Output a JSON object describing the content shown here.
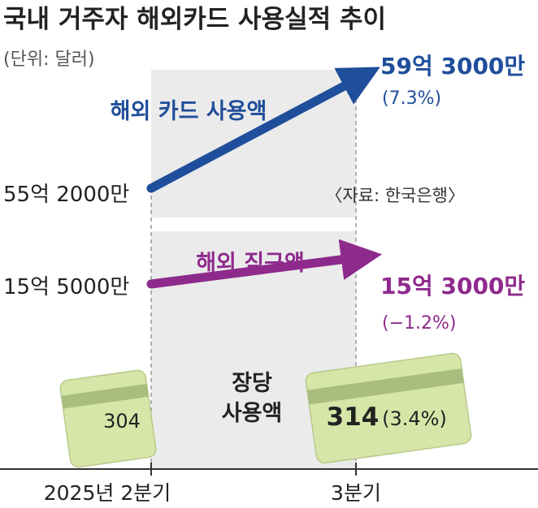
{
  "title": "국내 거주자 해외카드 사용실적 추이",
  "unit": "(단위: 달러)",
  "source": "〈자료: 한국은행〉",
  "colors": {
    "card": "#1f4e9b",
    "direct": "#8e2a8c",
    "panel": "#ebebeb",
    "card_face": "#d6e6a8",
    "card_stripe": "#a9bd7f",
    "text": "#222222"
  },
  "chart_data": {
    "type": "line",
    "categories": [
      "2025년 2분기",
      "3분기"
    ],
    "series": [
      {
        "name": "해외 카드 사용액",
        "values": [
          5520000000,
          5930000000
        ],
        "start_label": "55억 2000만",
        "end_label": "59억 3000만",
        "change_label": "(7.3%)"
      },
      {
        "name": "해외 직구액",
        "values": [
          1550000000,
          1530000000
        ],
        "start_label": "15억 5000만",
        "end_label": "15억 3000만",
        "change_label": "(−1.2%)"
      }
    ],
    "cards_per_person": {
      "name_line1": "장당",
      "name_line2": "사용액",
      "values": [
        304,
        314
      ],
      "value_labels": [
        "304",
        "314"
      ],
      "change_label": "(3.4%)"
    }
  }
}
